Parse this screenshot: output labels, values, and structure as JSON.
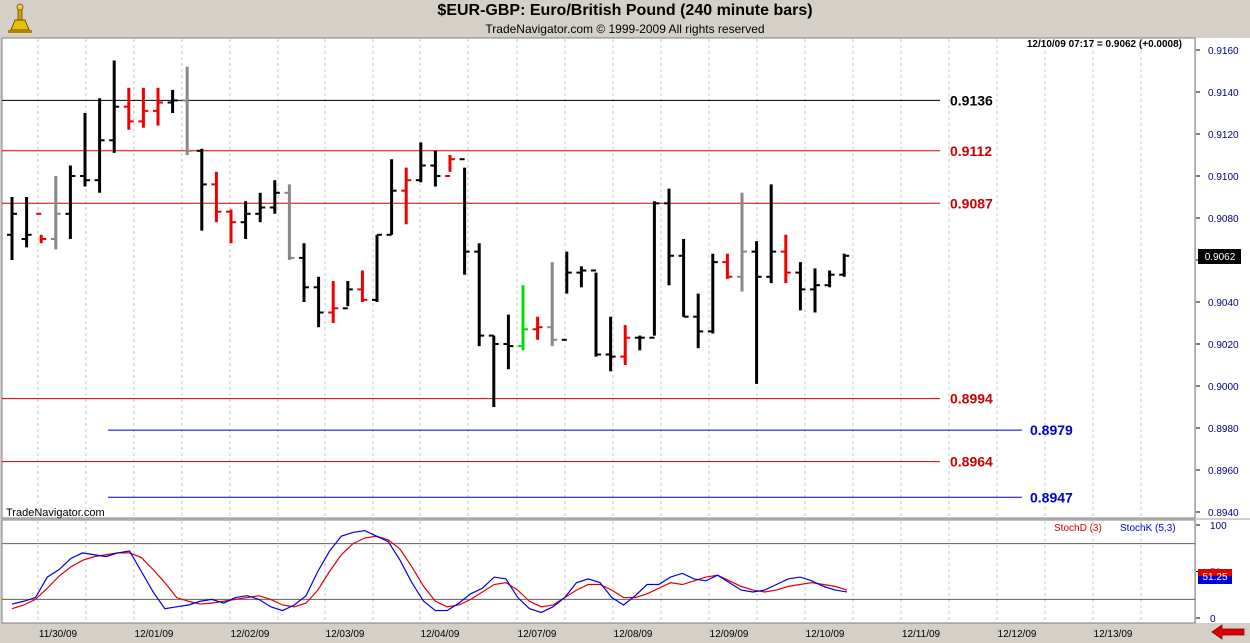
{
  "header": {
    "title": "$EUR-GBP:  Euro/British Pound  (240 minute bars)",
    "subtitle": "TradeNavigator.com © 1999-2009 All rights reserved",
    "logo_icon": "trade-navigator-logo-icon"
  },
  "footer": {
    "nav_icon": "red-left-arrow-icon"
  },
  "chart_data": [
    {
      "type": "ohlc",
      "readout": "12/10/09 07:17 = 0.9062 (+0.0008)",
      "watermark": "TradeNavigator.com",
      "ylim": [
        0.894,
        0.9165
      ],
      "y_ticks": [
        "0.9160",
        "0.9140",
        "0.9120",
        "0.9100",
        "0.9080",
        "0.9060",
        "0.9040",
        "0.9020",
        "0.9000",
        "0.8980",
        "0.8960",
        "0.8940"
      ],
      "last_price_label": "0.9062",
      "x_tick_labels": [
        "11/30/09",
        "12/01/09",
        "12/02/09",
        "12/03/09",
        "12/04/09",
        "12/07/09",
        "12/08/09",
        "12/09/09",
        "12/10/09",
        "12/11/09",
        "12/12/09",
        "12/13/09"
      ],
      "levels": [
        {
          "value": "0.9136",
          "color": "#000000",
          "start": "11/30/09"
        },
        {
          "value": "0.9112",
          "color": "#cc0000",
          "start": "11/30/09"
        },
        {
          "value": "0.9087",
          "color": "#cc0000",
          "start": "11/30/09"
        },
        {
          "value": "0.8994",
          "color": "#cc0000",
          "start": "11/30/09"
        },
        {
          "value": "0.8979",
          "color": "#0000cc",
          "start": "12/01/09"
        },
        {
          "value": "0.8964",
          "color": "#cc0000",
          "start": "11/30/09"
        },
        {
          "value": "0.8947",
          "color": "#0000cc",
          "start": "12/01/09"
        }
      ],
      "bars": [
        [
          0.9072,
          0.909,
          0.906,
          0.9082,
          "k"
        ],
        [
          0.907,
          0.909,
          0.9066,
          0.9072,
          "k"
        ],
        [
          0.9082,
          0.9072,
          0.9068,
          0.907,
          "r"
        ],
        [
          0.907,
          0.91,
          0.9065,
          0.9082,
          "g"
        ],
        [
          0.9082,
          0.9105,
          0.907,
          0.91,
          "k"
        ],
        [
          0.91,
          0.913,
          0.9095,
          0.9098,
          "k"
        ],
        [
          0.9098,
          0.9137,
          0.9092,
          0.9117,
          "k"
        ],
        [
          0.9117,
          0.9155,
          0.9111,
          0.9133,
          "k"
        ],
        [
          0.9133,
          0.9142,
          0.9122,
          0.9126,
          "r"
        ],
        [
          0.9126,
          0.9142,
          0.9123,
          0.9131,
          "r"
        ],
        [
          0.9131,
          0.9142,
          0.9124,
          0.9135,
          "r"
        ],
        [
          0.9135,
          0.9141,
          0.913,
          0.9136,
          "k"
        ],
        [
          0.9136,
          0.9152,
          0.911,
          0.9112,
          "g"
        ],
        [
          0.9112,
          0.9113,
          0.9074,
          0.9096,
          "k"
        ],
        [
          0.9096,
          0.9102,
          0.9078,
          0.9083,
          "r"
        ],
        [
          0.9083,
          0.9084,
          0.9068,
          0.9078,
          "r"
        ],
        [
          0.9078,
          0.9088,
          0.907,
          0.9082,
          "k"
        ],
        [
          0.9082,
          0.9092,
          0.9078,
          0.9085,
          "k"
        ],
        [
          0.9085,
          0.9098,
          0.9082,
          0.9092,
          "k"
        ],
        [
          0.9092,
          0.9096,
          0.906,
          0.9061,
          "g"
        ],
        [
          0.9061,
          0.9068,
          0.904,
          0.9047,
          "k"
        ],
        [
          0.9047,
          0.9052,
          0.9028,
          0.9035,
          "k"
        ],
        [
          0.9035,
          0.905,
          0.903,
          0.9037,
          "r"
        ],
        [
          0.9037,
          0.905,
          0.9038,
          0.9046,
          "k"
        ],
        [
          0.9046,
          0.9055,
          0.904,
          0.9041,
          "r"
        ],
        [
          0.9041,
          0.9072,
          0.904,
          0.9072,
          "k"
        ],
        [
          0.9072,
          0.9108,
          0.9072,
          0.9093,
          "k"
        ],
        [
          0.9093,
          0.9104,
          0.9077,
          0.9098,
          "r"
        ],
        [
          0.9098,
          0.9116,
          0.9097,
          0.9105,
          "k"
        ],
        [
          0.9105,
          0.9112,
          0.9095,
          0.91,
          "k"
        ],
        [
          0.91,
          0.911,
          0.9102,
          0.9108,
          "r"
        ],
        [
          0.9108,
          0.9104,
          0.9053,
          0.9064,
          "k"
        ],
        [
          0.9064,
          0.9068,
          0.9019,
          0.9024,
          "k"
        ],
        [
          0.9024,
          0.9024,
          0.899,
          0.902,
          "k"
        ],
        [
          0.902,
          0.9034,
          0.9008,
          0.9019,
          "k"
        ],
        [
          0.9019,
          0.9048,
          0.9017,
          0.9027,
          "l"
        ],
        [
          0.9027,
          0.9033,
          0.9022,
          0.9028,
          "r"
        ],
        [
          0.9028,
          0.9059,
          0.9019,
          0.9022,
          "g"
        ],
        [
          0.9022,
          0.9064,
          0.9044,
          0.9054,
          "k"
        ],
        [
          0.9054,
          0.9057,
          0.9047,
          0.9055,
          "k"
        ],
        [
          0.9055,
          0.9054,
          0.9014,
          0.9015,
          "k"
        ],
        [
          0.9015,
          0.9033,
          0.9007,
          0.9014,
          "k"
        ],
        [
          0.9014,
          0.9029,
          0.901,
          0.9023,
          "r"
        ],
        [
          0.9023,
          0.9024,
          0.9017,
          0.9023,
          "k"
        ],
        [
          0.9023,
          0.9088,
          0.9024,
          0.9087,
          "k"
        ],
        [
          0.9087,
          0.9094,
          0.9048,
          0.9062,
          "k"
        ],
        [
          0.9062,
          0.907,
          0.9033,
          0.9033,
          "k"
        ],
        [
          0.9033,
          0.9044,
          0.9018,
          0.9026,
          "k"
        ],
        [
          0.9026,
          0.9063,
          0.9025,
          0.9059,
          "k"
        ],
        [
          0.9059,
          0.9063,
          0.9051,
          0.9052,
          "r"
        ],
        [
          0.9052,
          0.9092,
          0.9045,
          0.9064,
          "g"
        ],
        [
          0.9064,
          0.9069,
          0.9001,
          0.9052,
          "k"
        ],
        [
          0.9052,
          0.9096,
          0.9049,
          0.9064,
          "k"
        ],
        [
          0.9064,
          0.9072,
          0.9049,
          0.9054,
          "r"
        ],
        [
          0.9054,
          0.9059,
          0.9036,
          0.9046,
          "k"
        ],
        [
          0.9046,
          0.9056,
          0.9035,
          0.9048,
          "k"
        ],
        [
          0.9048,
          0.9055,
          0.9047,
          0.9053,
          "k"
        ],
        [
          0.9053,
          0.9063,
          0.9052,
          0.9062,
          "k"
        ]
      ]
    },
    {
      "type": "line",
      "title": "",
      "series": [
        {
          "name": "StochD (3)",
          "color": "#dd0000",
          "values": [
            10,
            14,
            20,
            32,
            45,
            55,
            62,
            66,
            68,
            70,
            70,
            65,
            52,
            38,
            22,
            18,
            15,
            16,
            18,
            20,
            22,
            24,
            20,
            14,
            12,
            16,
            30,
            50,
            68,
            80,
            86,
            88,
            84,
            74,
            55,
            34,
            18,
            12,
            14,
            20,
            28,
            36,
            38,
            30,
            18,
            12,
            14,
            22,
            30,
            36,
            36,
            30,
            22,
            22,
            26,
            32,
            38,
            36,
            40,
            44,
            46,
            40,
            34,
            30,
            28,
            30,
            34,
            36,
            38,
            36,
            34,
            30
          ]
        },
        {
          "name": "StochK (5,3)",
          "color": "#0000dd",
          "values": [
            15,
            18,
            22,
            44,
            52,
            64,
            70,
            68,
            66,
            70,
            72,
            50,
            28,
            10,
            12,
            14,
            18,
            20,
            16,
            22,
            24,
            20,
            12,
            8,
            14,
            24,
            50,
            72,
            88,
            92,
            94,
            88,
            82,
            62,
            38,
            18,
            8,
            8,
            16,
            26,
            32,
            44,
            42,
            22,
            10,
            6,
            12,
            22,
            38,
            42,
            38,
            22,
            14,
            24,
            36,
            36,
            44,
            48,
            42,
            40,
            46,
            38,
            30,
            28,
            30,
            36,
            42,
            44,
            40,
            34,
            30,
            28
          ]
        }
      ],
      "ylim": [
        0,
        100
      ],
      "y_ticks": [
        "100",
        "50",
        "0"
      ],
      "last_value_label": "51.25",
      "ref_lines": [
        80,
        20
      ]
    }
  ]
}
